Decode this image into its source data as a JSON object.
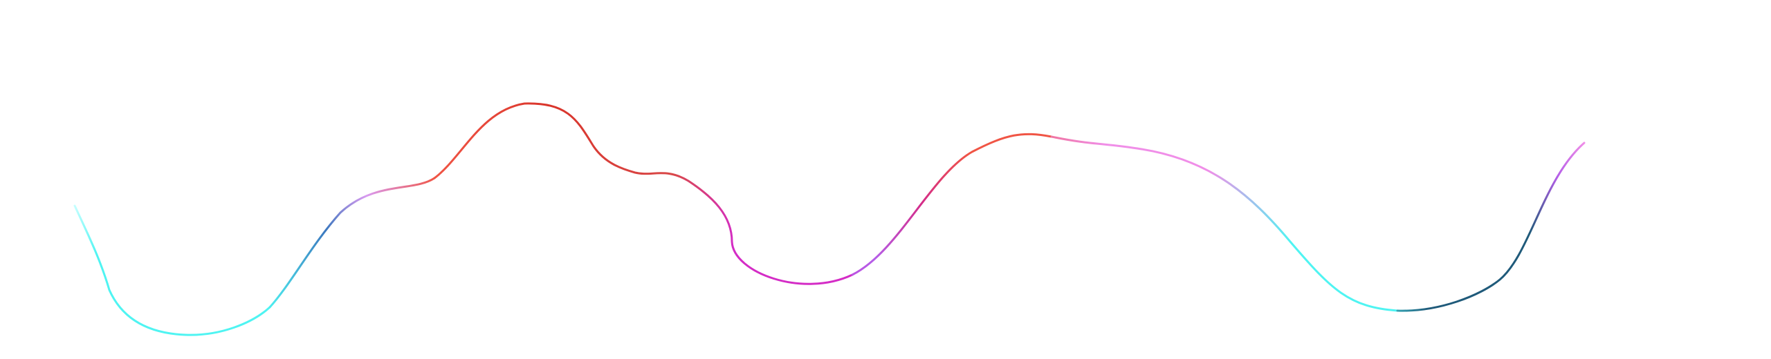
{
  "scene": {
    "background": "#ffffff",
    "stroke_colors": {
      "cyan": "#4ff4f2",
      "light_cyan": "#c8ffff",
      "lavender": "#d99af0",
      "blue": "#3b78bf",
      "orange_red": "#f05545",
      "dark_red": "#d9342a",
      "magenta": "#d42cc6",
      "purple": "#b55ee8",
      "pink": "#f08ee8",
      "navy": "#1f5a7a"
    }
  }
}
